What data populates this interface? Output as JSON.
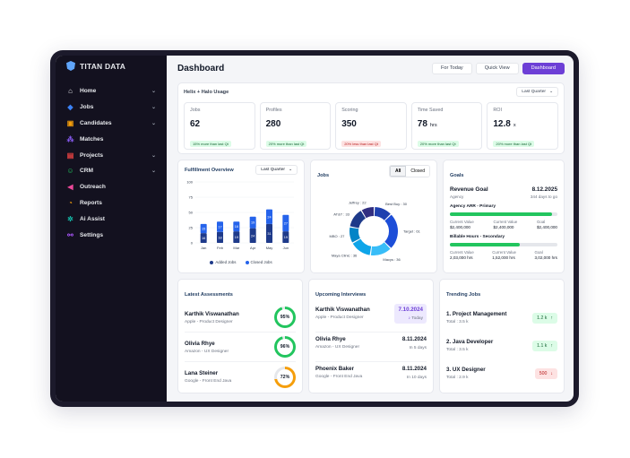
{
  "brand": {
    "name": "TITAN DATA"
  },
  "sidebar": {
    "items": [
      {
        "label": "Home",
        "icon": "home-icon",
        "glyph": "⌂",
        "chevron": true,
        "color": "#e5e7eb"
      },
      {
        "label": "Jobs",
        "icon": "diamond-icon",
        "glyph": "◆",
        "chevron": true,
        "color": "#3b82f6"
      },
      {
        "label": "Candidates",
        "icon": "cube-icon",
        "glyph": "▣",
        "chevron": true,
        "color": "#f59e0b"
      },
      {
        "label": "Matches",
        "icon": "nodes-icon",
        "glyph": "⁂",
        "chevron": false,
        "color": "#8b5cf6"
      },
      {
        "label": "Projects",
        "icon": "briefcase-icon",
        "glyph": "▤",
        "chevron": true,
        "color": "#ef4444"
      },
      {
        "label": "CRM",
        "icon": "users-icon",
        "glyph": "☺",
        "chevron": true,
        "color": "#22c55e"
      },
      {
        "label": "Outreach",
        "icon": "megaphone-icon",
        "glyph": "◀",
        "chevron": false,
        "color": "#ec4899"
      },
      {
        "label": "Reports",
        "icon": "pie-chart-icon",
        "glyph": "◔",
        "chevron": false,
        "color": "#f59e0b"
      },
      {
        "label": "Ai Assist",
        "icon": "ai-sparkle-icon",
        "glyph": "✲",
        "chevron": false,
        "color": "#14b8a6"
      },
      {
        "label": "Settings",
        "icon": "workflow-icon",
        "glyph": "⚯",
        "chevron": false,
        "color": "#a855f7"
      }
    ]
  },
  "header": {
    "title": "Dashboard",
    "buttons": [
      "For Today",
      "Quick View",
      "Dashboard"
    ],
    "active_button": "Dashboard"
  },
  "usage": {
    "title": "Helix + Halo Usage",
    "period": "Last Quarter",
    "stats": [
      {
        "title": "Jobs",
        "value": "62",
        "unit": "",
        "delta": "15% more than last Qt",
        "trend": "up"
      },
      {
        "title": "Profiles",
        "value": "280",
        "unit": "",
        "delta": "20% more than last Qt",
        "trend": "up"
      },
      {
        "title": "Scoring",
        "value": "350",
        "unit": "",
        "delta": "20% less than last Qt",
        "trend": "down"
      },
      {
        "title": "Time Saved",
        "value": "78",
        "unit": "hrs",
        "delta": "20% more than last Qt",
        "trend": "up"
      },
      {
        "title": "ROI",
        "value": "12.8",
        "unit": "x",
        "delta": "20% more than last Qt",
        "trend": "up"
      }
    ]
  },
  "fulfillment": {
    "title": "Fulfillment Overview",
    "period": "Last Quarter"
  },
  "chart_data": [
    {
      "type": "bar",
      "title": "Fulfillment Overview",
      "categories": [
        "Jan",
        "Feb",
        "Mar",
        "Apr",
        "May",
        "Jun"
      ],
      "ylim": [
        0,
        100
      ],
      "yticks": [
        0,
        25,
        50,
        75,
        100
      ],
      "series": [
        {
          "name": "Added Jobs",
          "values": [
            16,
            18,
            19,
            24,
            31,
            19
          ],
          "color": "#1e3a8a"
        },
        {
          "name": "Closed Jobs",
          "values": [
            15,
            17,
            16,
            19,
            24,
            27
          ],
          "color": "#2563eb"
        }
      ]
    },
    {
      "type": "pie",
      "title": "Jobs",
      "tabs": [
        "All",
        "Closed"
      ],
      "active_tab": "All",
      "slices": [
        {
          "label": "Best Buy",
          "value": 30,
          "color": "#1e40af"
        },
        {
          "label": "Target",
          "value": 61,
          "color": "#1d4ed8"
        },
        {
          "label": "Macys",
          "value": 36,
          "color": "#38bdf8"
        },
        {
          "label": "Maya Clinic",
          "value": 36,
          "color": "#0ea5e9"
        },
        {
          "label": "MBO",
          "value": 27,
          "color": "#0284c7"
        },
        {
          "label": "AT&T",
          "value": 33,
          "color": "#1e3a8a"
        },
        {
          "label": "Jeffrey",
          "value": 22,
          "color": "#312e81"
        }
      ]
    }
  ],
  "goals": {
    "title": "Goals",
    "revenue": {
      "label": "Revenue Goal",
      "date": "8.12.2025",
      "sub": "Agency",
      "days": "344 days to go"
    },
    "primary": {
      "label": "Agency ARR - Primary",
      "progress": 0.95,
      "current_label": "Current Value",
      "current": "$2,400,000",
      "current2_label": "Current Value",
      "current2": "$2,400,000",
      "goal_label": "Goal",
      "goal": "$2,400,000"
    },
    "secondary": {
      "label": "Billable Hours - Secondary",
      "progress": 0.65,
      "current_label": "Current Value",
      "current": "2,03,000 hrs",
      "current2_label": "Current Value",
      "current2": "1,52,000 hrs",
      "goal_label": "Goal",
      "goal": "3,02,000 hrs"
    }
  },
  "assessments": {
    "title": "Latest Assessments",
    "items": [
      {
        "name": "Karthik Viswanathan",
        "sub": "Apple - Product Designer",
        "score": 95,
        "label": "95%",
        "color": "#22c55e"
      },
      {
        "name": "Olivia Rhye",
        "sub": "Amazon - UX Designer",
        "score": 96,
        "label": "96%",
        "color": "#22c55e"
      },
      {
        "name": "Lana Steiner",
        "sub": "Google - Front End Java",
        "score": 72,
        "label": "72%",
        "color": "#f59e0b"
      }
    ]
  },
  "interviews": {
    "title": "Upcoming Interviews",
    "items": [
      {
        "name": "Karthik Viswanathan",
        "sub": "Apple - Product Designer",
        "date": "7.10.2024",
        "when": "Today",
        "highlight": true
      },
      {
        "name": "Olivia Rhye",
        "sub": "Amazon - UX Designer",
        "date": "8.11.2024",
        "when": "In 5 days",
        "highlight": false
      },
      {
        "name": "Phoenix Baker",
        "sub": "Google - Front End Java",
        "date": "8.11.2024",
        "when": "In 10 days",
        "highlight": false
      }
    ]
  },
  "trending": {
    "title": "Trending Jobs",
    "items": [
      {
        "name": "1. Project Management",
        "total": "Total : 3.5 k",
        "value": "1.2 k",
        "trend": "up"
      },
      {
        "name": "2. Java Developer",
        "total": "Total : 3.5 k",
        "value": "1.1 k",
        "trend": "up"
      },
      {
        "name": "3. UX Designer",
        "total": "Total : 2.9 k",
        "value": "500",
        "trend": "down"
      }
    ]
  }
}
